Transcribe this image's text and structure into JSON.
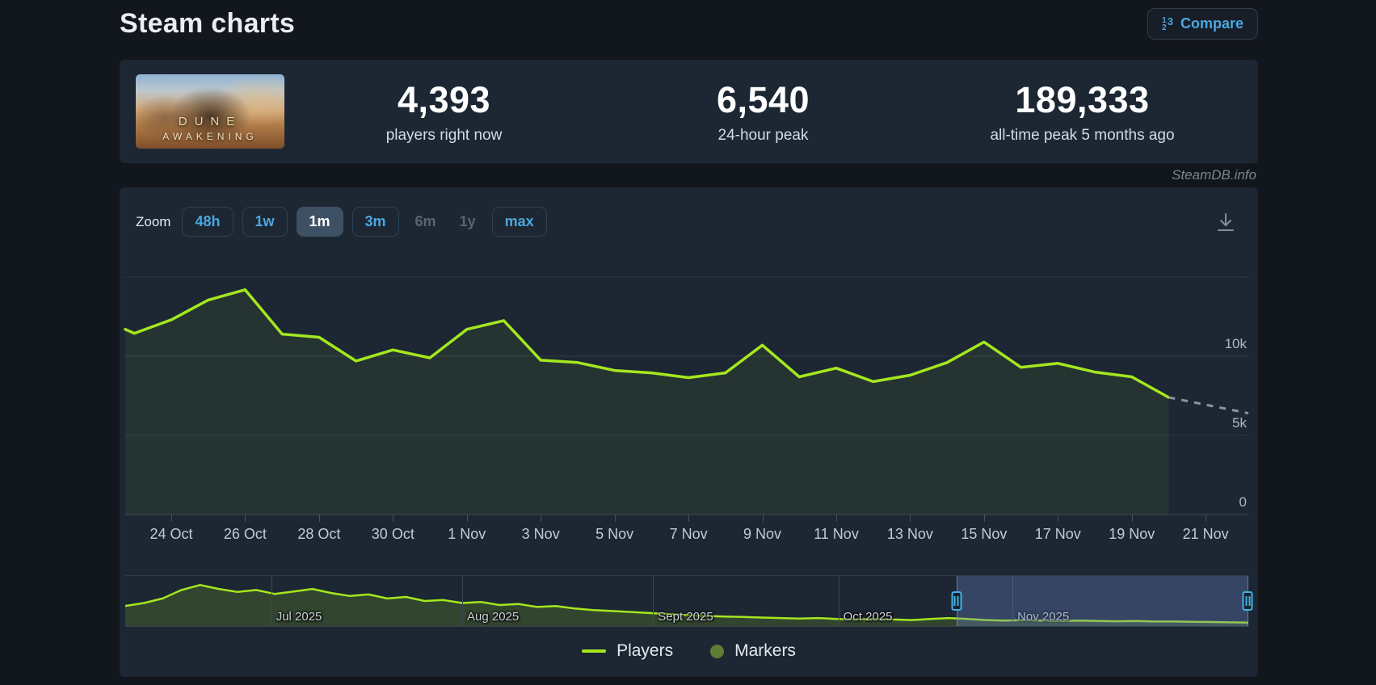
{
  "header": {
    "title": "Steam charts",
    "compare_label": "Compare"
  },
  "stats": {
    "game_capsule": {
      "line1": "DUNE",
      "line2": "AWAKENING"
    },
    "players_now": {
      "value": "4,393",
      "label": "players right now"
    },
    "peak_24h": {
      "value": "6,540",
      "label": "24-hour peak"
    },
    "all_time_peak": {
      "value": "189,333",
      "label": "all-time peak 5 months ago"
    }
  },
  "watermark": {
    "text": "SteamDB.info"
  },
  "toolbar": {
    "zoom_label": "Zoom",
    "buttons": [
      {
        "label": "48h",
        "state": "normal"
      },
      {
        "label": "1w",
        "state": "normal"
      },
      {
        "label": "1m",
        "state": "selected"
      },
      {
        "label": "3m",
        "state": "normal"
      },
      {
        "label": "6m",
        "state": "disabled"
      },
      {
        "label": "1y",
        "state": "disabled"
      },
      {
        "label": "max",
        "state": "normal"
      }
    ]
  },
  "chart_data": {
    "type": "line",
    "title": "Concurrent players, 1 month zoom",
    "ylim": [
      0,
      15000
    ],
    "grid": true,
    "y_gridlines": [
      {
        "value": 15000,
        "label": ""
      },
      {
        "value": 10000,
        "label": "10k"
      },
      {
        "value": 5000,
        "label": "5k"
      },
      {
        "value": 0,
        "label": "0"
      }
    ],
    "x_tick_labels": [
      "24 Oct",
      "26 Oct",
      "28 Oct",
      "30 Oct",
      "1 Nov",
      "3 Nov",
      "5 Nov",
      "7 Nov",
      "9 Nov",
      "11 Nov",
      "13 Nov",
      "15 Nov",
      "17 Nov",
      "19 Nov",
      "21 Nov"
    ],
    "series": [
      {
        "name": "Players",
        "color": "#a5e71f",
        "x": [
          "22 Oct",
          "23 Oct",
          "24 Oct",
          "25 Oct",
          "26 Oct",
          "27 Oct",
          "28 Oct",
          "29 Oct",
          "30 Oct",
          "31 Oct",
          "1 Nov",
          "2 Nov",
          "3 Nov",
          "4 Nov",
          "5 Nov",
          "6 Nov",
          "7 Nov",
          "8 Nov",
          "9 Nov",
          "10 Nov",
          "11 Nov",
          "12 Nov",
          "13 Nov",
          "14 Nov",
          "15 Nov",
          "16 Nov",
          "17 Nov",
          "18 Nov",
          "19 Nov",
          "20 Nov"
        ],
        "values": [
          11700,
          11450,
          12300,
          13550,
          14200,
          11400,
          11200,
          9700,
          10400,
          9900,
          11700,
          12250,
          9750,
          9600,
          9100,
          8950,
          8650,
          8950,
          10700,
          8700,
          9250,
          8400,
          8800,
          9600,
          10900,
          9300,
          9550,
          9000,
          8700,
          7400
        ]
      }
    ],
    "dashed_tail": {
      "to_date": "21 Nov",
      "value": 6400,
      "color": "#8b949c",
      "note": "incomplete current period shown dashed"
    },
    "navigator": {
      "range_months": [
        "Jul 2025",
        "Aug 2025",
        "Sept 2025",
        "Oct 2025",
        "Nov 2025"
      ],
      "month_fracs": [
        0.13,
        0.3,
        0.47,
        0.635,
        0.79
      ],
      "selection_start_frac": 0.74,
      "selection_end_frac": 1.0,
      "values_frac": [
        0.4,
        0.46,
        0.55,
        0.72,
        0.82,
        0.74,
        0.68,
        0.72,
        0.64,
        0.69,
        0.74,
        0.66,
        0.6,
        0.63,
        0.55,
        0.58,
        0.5,
        0.52,
        0.46,
        0.48,
        0.42,
        0.44,
        0.38,
        0.4,
        0.35,
        0.32,
        0.3,
        0.28,
        0.26,
        0.24,
        0.22,
        0.2,
        0.19,
        0.18,
        0.17,
        0.16,
        0.15,
        0.16,
        0.14,
        0.13,
        0.14,
        0.13,
        0.12,
        0.14,
        0.16,
        0.14,
        0.12,
        0.11,
        0.12,
        0.11,
        0.1,
        0.11,
        0.1,
        0.095,
        0.1,
        0.09,
        0.09,
        0.085,
        0.08,
        0.075,
        0.07
      ]
    },
    "legend_position": "bottom-center"
  },
  "legend": {
    "items": [
      {
        "label": "Players",
        "type": "line",
        "color": "#a5e71f"
      },
      {
        "label": "Markers",
        "type": "circle",
        "color": "#5f7d33"
      }
    ]
  },
  "colors": {
    "accent_blue": "#4ba7de",
    "line_green": "#a5e71f",
    "marker_olive": "#5f7d33",
    "panel_bg": "#1c2733",
    "page_bg": "#12161d",
    "selection_overlay": "rgba(106,130,196,0.33)",
    "handle_blue": "#3fb1e3"
  }
}
